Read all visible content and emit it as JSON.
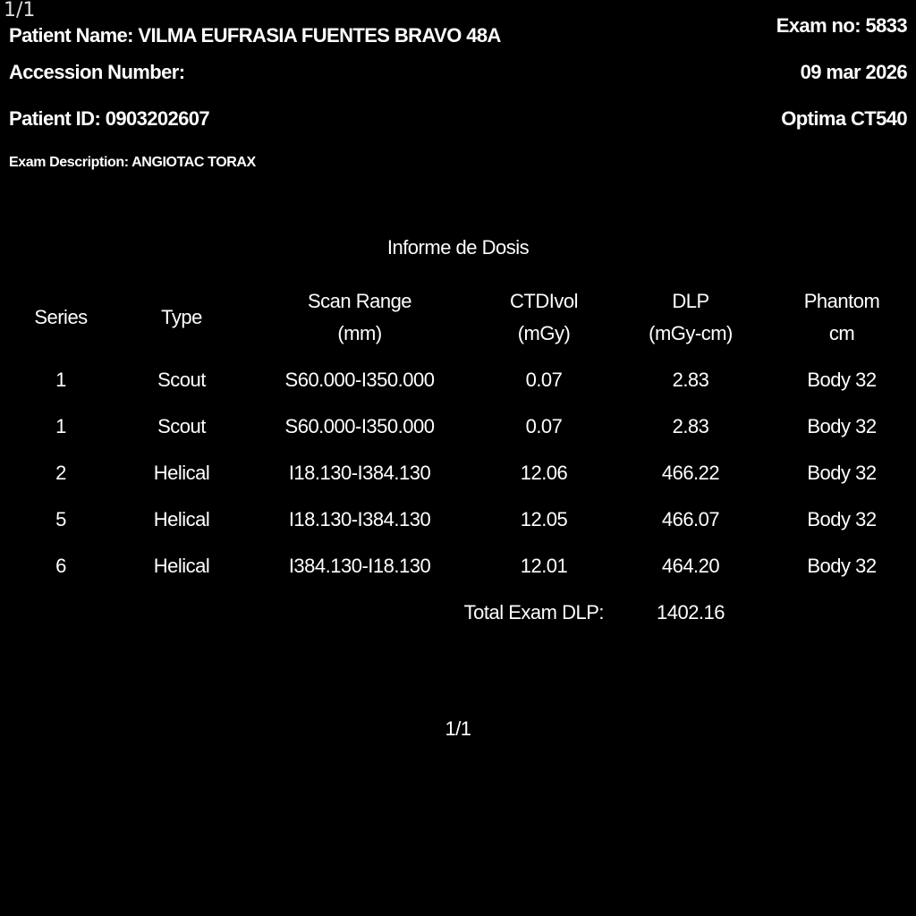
{
  "overlay": {
    "page_indicator": "1/1"
  },
  "header": {
    "patient_name": "Patient Name: VILMA EUFRASIA FUENTES BRAVO 48A",
    "accession_number": "Accession Number:",
    "patient_id": "Patient ID: 0903202607",
    "exam_description": "Exam Description: ANGIOTAC TORAX",
    "exam_no": "Exam no: 5833",
    "date": "09 mar 2026",
    "scanner": "Optima CT540"
  },
  "report": {
    "title": "Informe de Dosis",
    "columns": [
      {
        "line1": "Series",
        "line2": ""
      },
      {
        "line1": "Type",
        "line2": ""
      },
      {
        "line1": "Scan Range",
        "line2": "(mm)"
      },
      {
        "line1": "CTDIvol",
        "line2": "(mGy)"
      },
      {
        "line1": "DLP",
        "line2": "(mGy-cm)"
      },
      {
        "line1": "Phantom",
        "line2": "cm"
      }
    ],
    "rows": [
      [
        "1",
        "Scout",
        "S60.000-I350.000",
        "0.07",
        "2.83",
        "Body 32"
      ],
      [
        "1",
        "Scout",
        "S60.000-I350.000",
        "0.07",
        "2.83",
        "Body 32"
      ],
      [
        "2",
        "Helical",
        "I18.130-I384.130",
        "12.06",
        "466.22",
        "Body 32"
      ],
      [
        "5",
        "Helical",
        "I18.130-I384.130",
        "12.05",
        "466.07",
        "Body 32"
      ],
      [
        "6",
        "Helical",
        "I384.130-I18.130",
        "12.01",
        "464.20",
        "Body 32"
      ]
    ],
    "total_label": "Total Exam DLP:",
    "total_value": "1402.16"
  },
  "footer": {
    "page": "1/1"
  }
}
